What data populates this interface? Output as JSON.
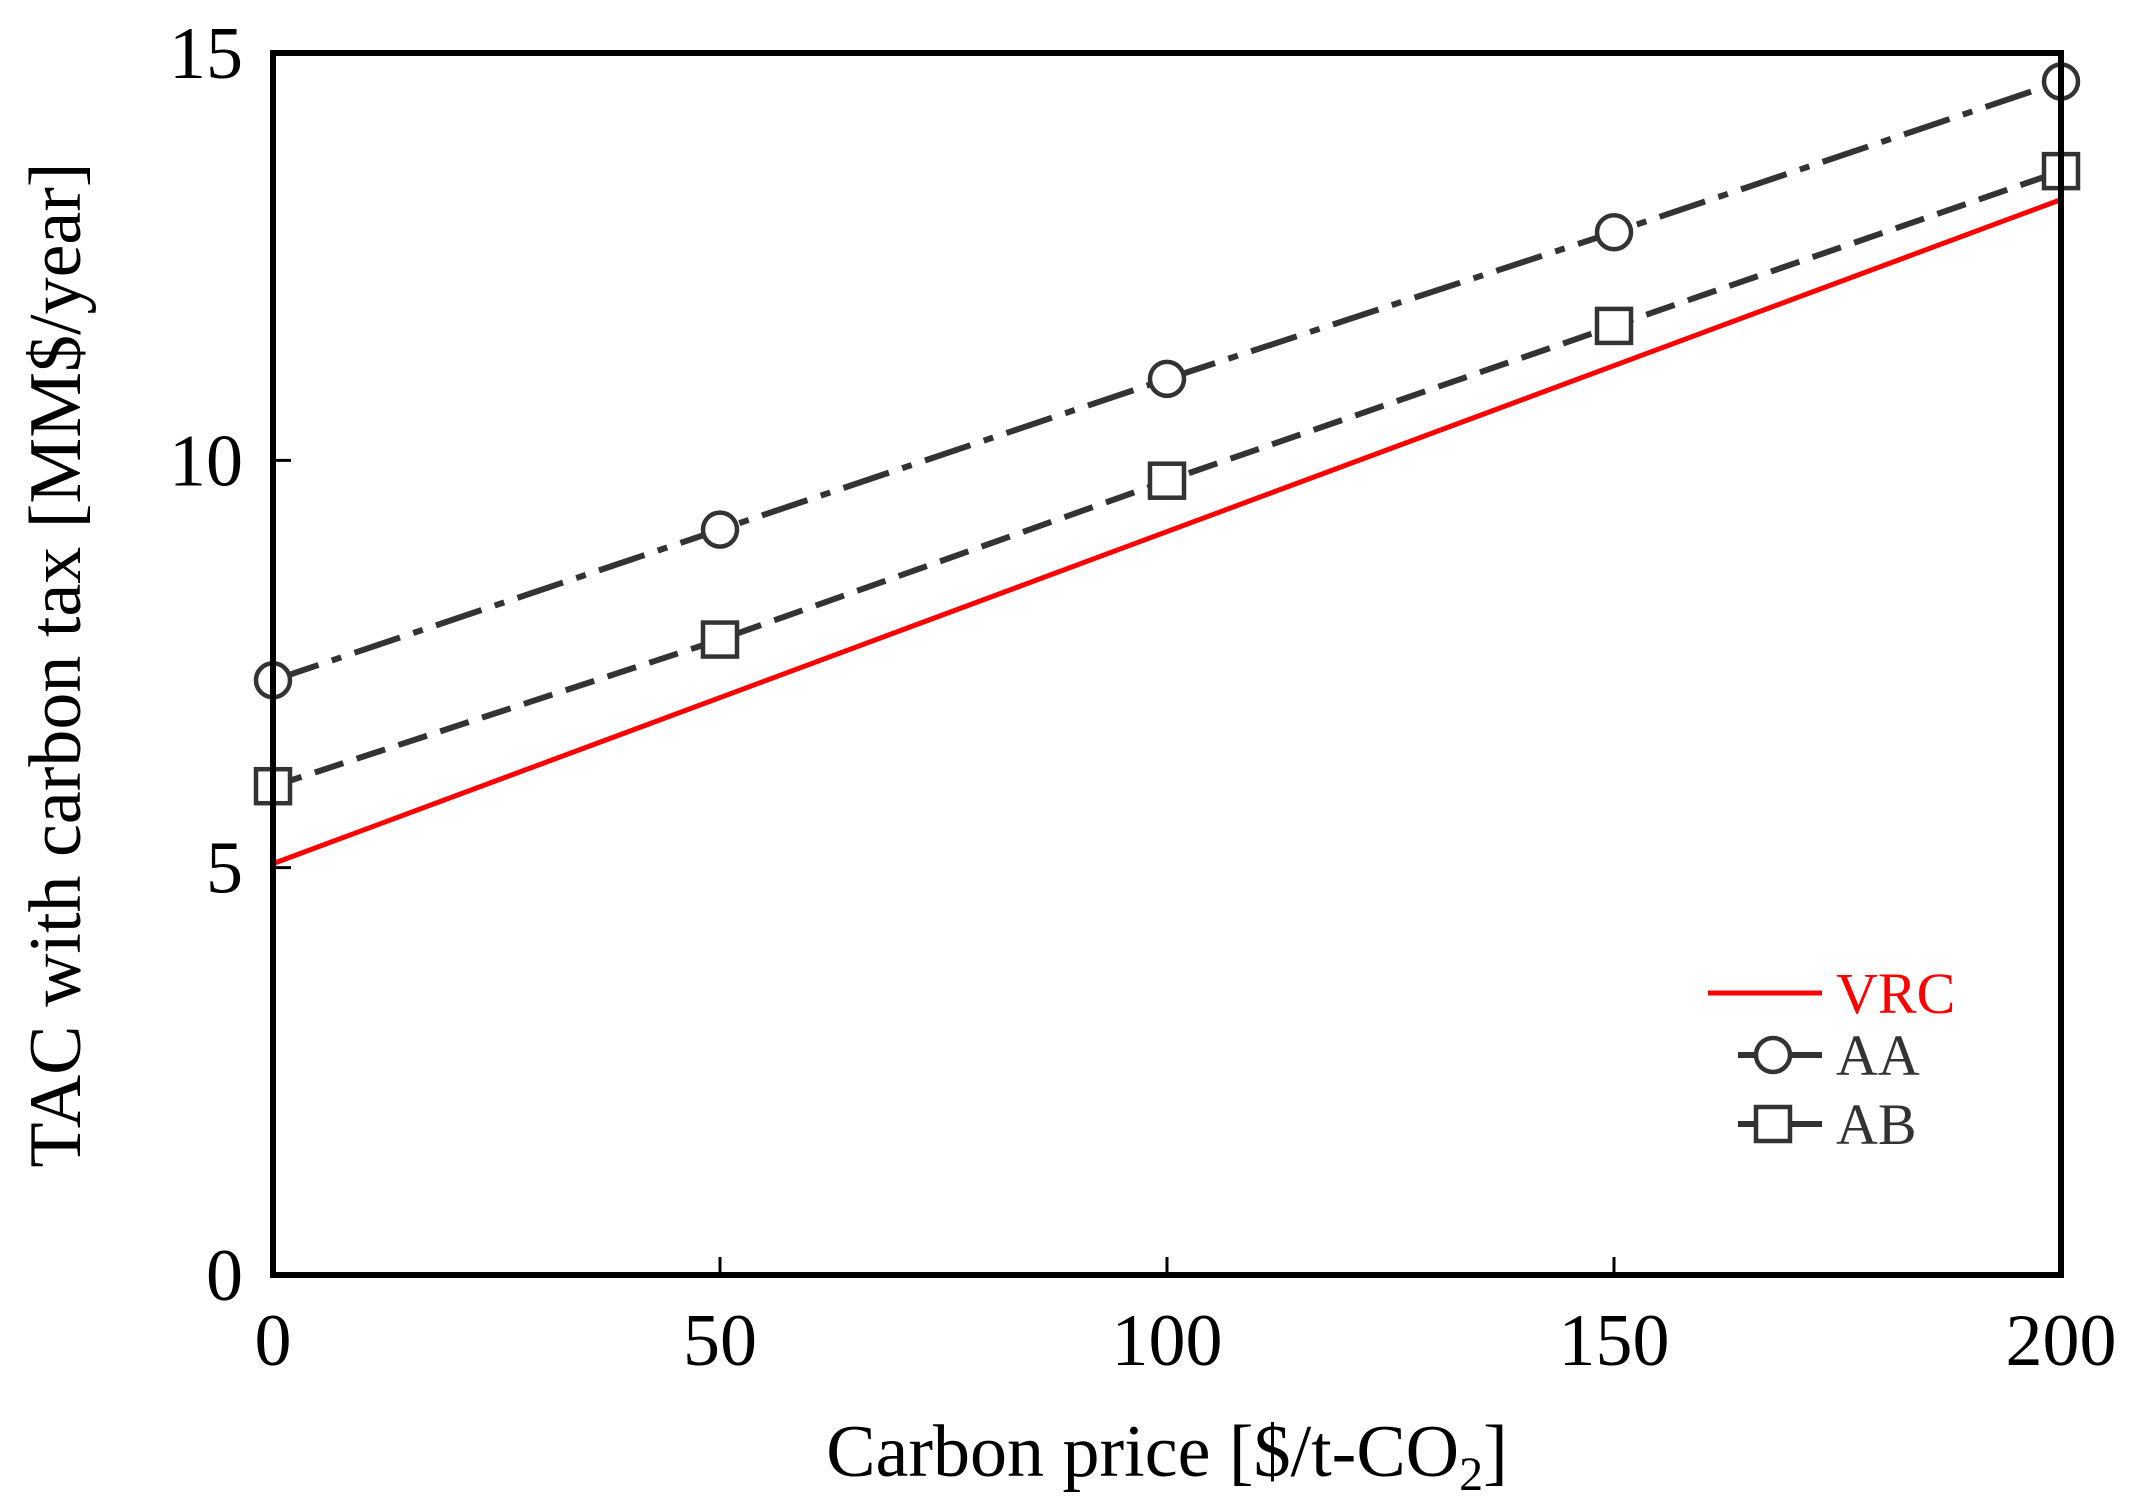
{
  "chart_data": {
    "type": "line",
    "title": "",
    "xlabel": {
      "main": "Carbon price [$/t-CO",
      "sub": "2",
      "end": "]"
    },
    "ylabel": "TAC with carbon tax [MM$/year]",
    "xlim": [
      0,
      200
    ],
    "ylim": [
      0,
      15
    ],
    "xticks": [
      0,
      50,
      100,
      150,
      200
    ],
    "yticks": [
      0,
      5,
      10,
      15
    ],
    "grid": false,
    "legend_position": "bottom-right",
    "series": [
      {
        "name": "VRC",
        "x": [
          0,
          200
        ],
        "values": [
          5.05,
          13.2
        ],
        "color": "#ff0000",
        "line_style": "solid",
        "marker": "none"
      },
      {
        "name": "AA",
        "x": [
          0,
          50,
          100,
          150,
          200
        ],
        "values": [
          7.3,
          9.15,
          11.0,
          12.8,
          14.65
        ],
        "color": "#333333",
        "line_style": "dash-dot",
        "marker": "circle"
      },
      {
        "name": "AB",
        "x": [
          0,
          50,
          100,
          150,
          200
        ],
        "values": [
          6.0,
          7.8,
          9.75,
          11.65,
          13.55
        ],
        "color": "#333333",
        "line_style": "dashed",
        "marker": "square"
      }
    ]
  }
}
